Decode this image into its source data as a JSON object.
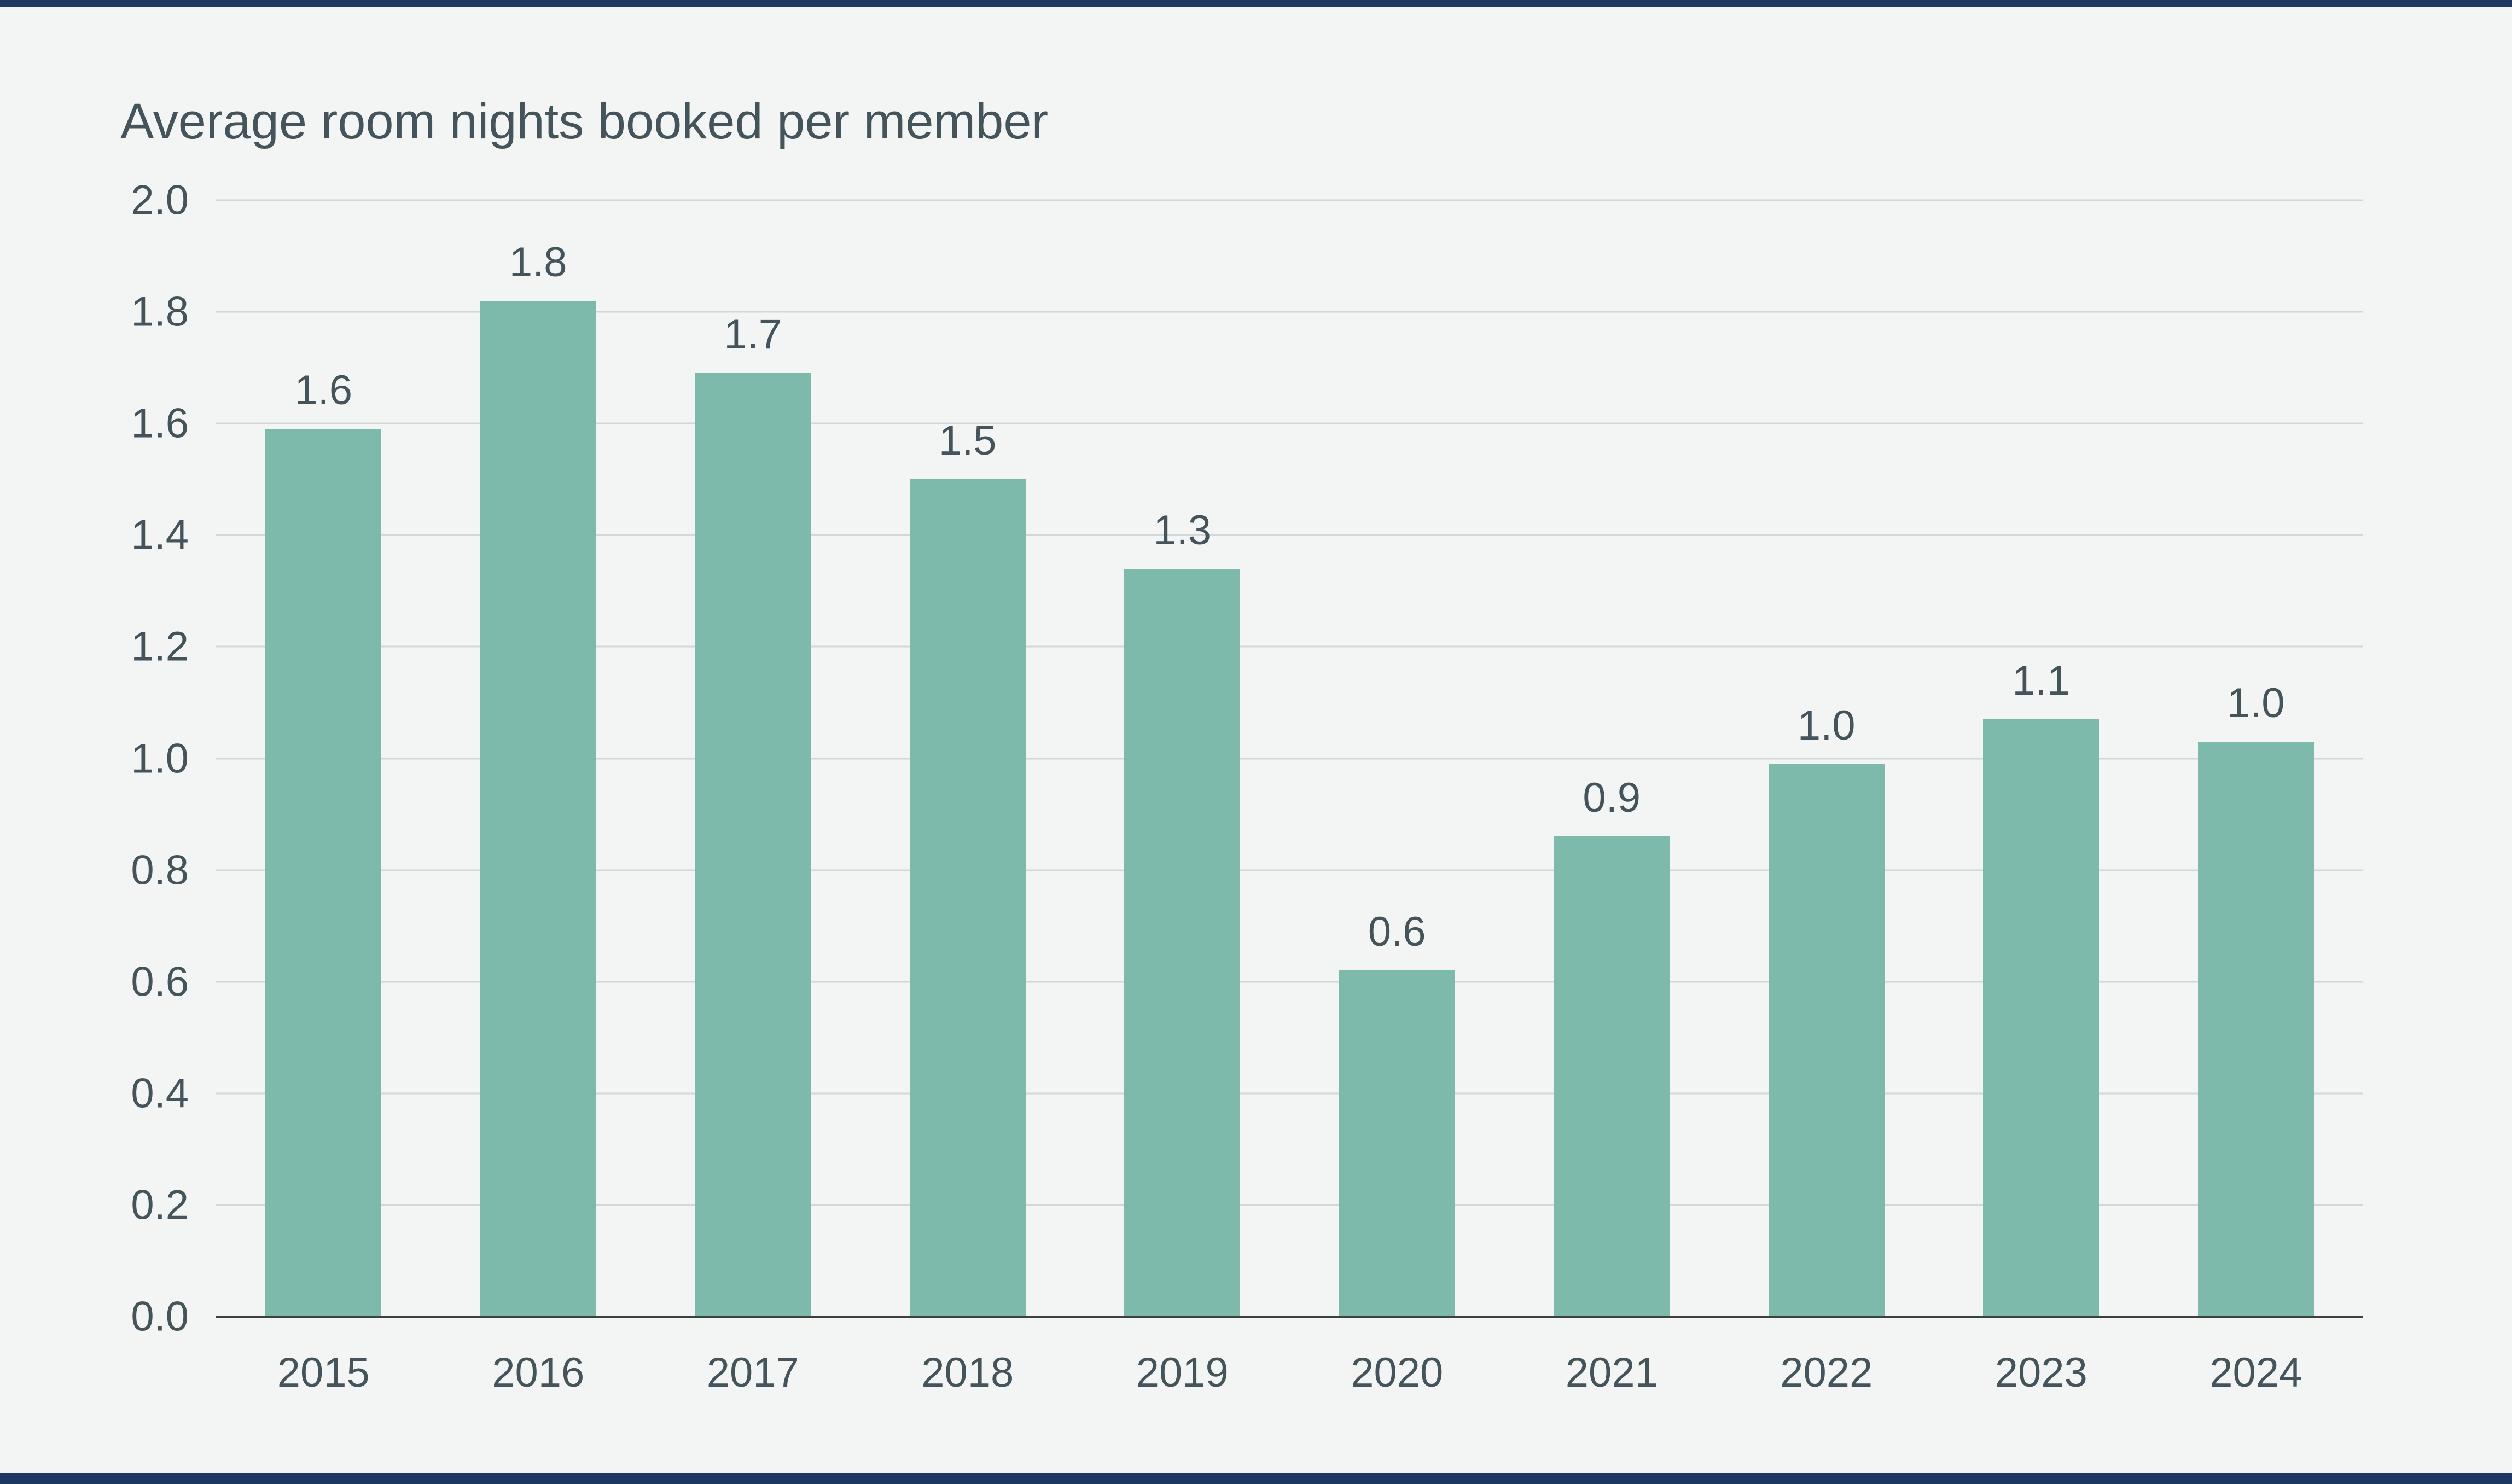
{
  "page": {
    "background": "#f3f5f4",
    "accent_bar_color": "#1f3562"
  },
  "chart_data": {
    "type": "bar",
    "title": "Average room nights booked per member",
    "categories": [
      "2015",
      "2016",
      "2017",
      "2018",
      "2019",
      "2020",
      "2021",
      "2022",
      "2023",
      "2024"
    ],
    "values": [
      1.59,
      1.82,
      1.69,
      1.5,
      1.34,
      0.62,
      0.86,
      0.99,
      1.07,
      1.03
    ],
    "value_labels": [
      "1.6",
      "1.8",
      "1.7",
      "1.5",
      "1.3",
      "0.6",
      "0.9",
      "1.0",
      "1.1",
      "1.0"
    ],
    "xlabel": "",
    "ylabel": "",
    "ylim": [
      0.0,
      2.0
    ],
    "ytick_step": 0.2,
    "ytick_labels": [
      "0.0",
      "0.2",
      "0.4",
      "0.6",
      "0.8",
      "1.0",
      "1.2",
      "1.4",
      "1.6",
      "1.8",
      "2.0"
    ],
    "grid": "horizontal",
    "legend": "none",
    "bar_color": "#7ebaab",
    "gridline_color": "#d3d8d7",
    "axis_line_color": "#3c4240",
    "text_color": "#44545a"
  }
}
